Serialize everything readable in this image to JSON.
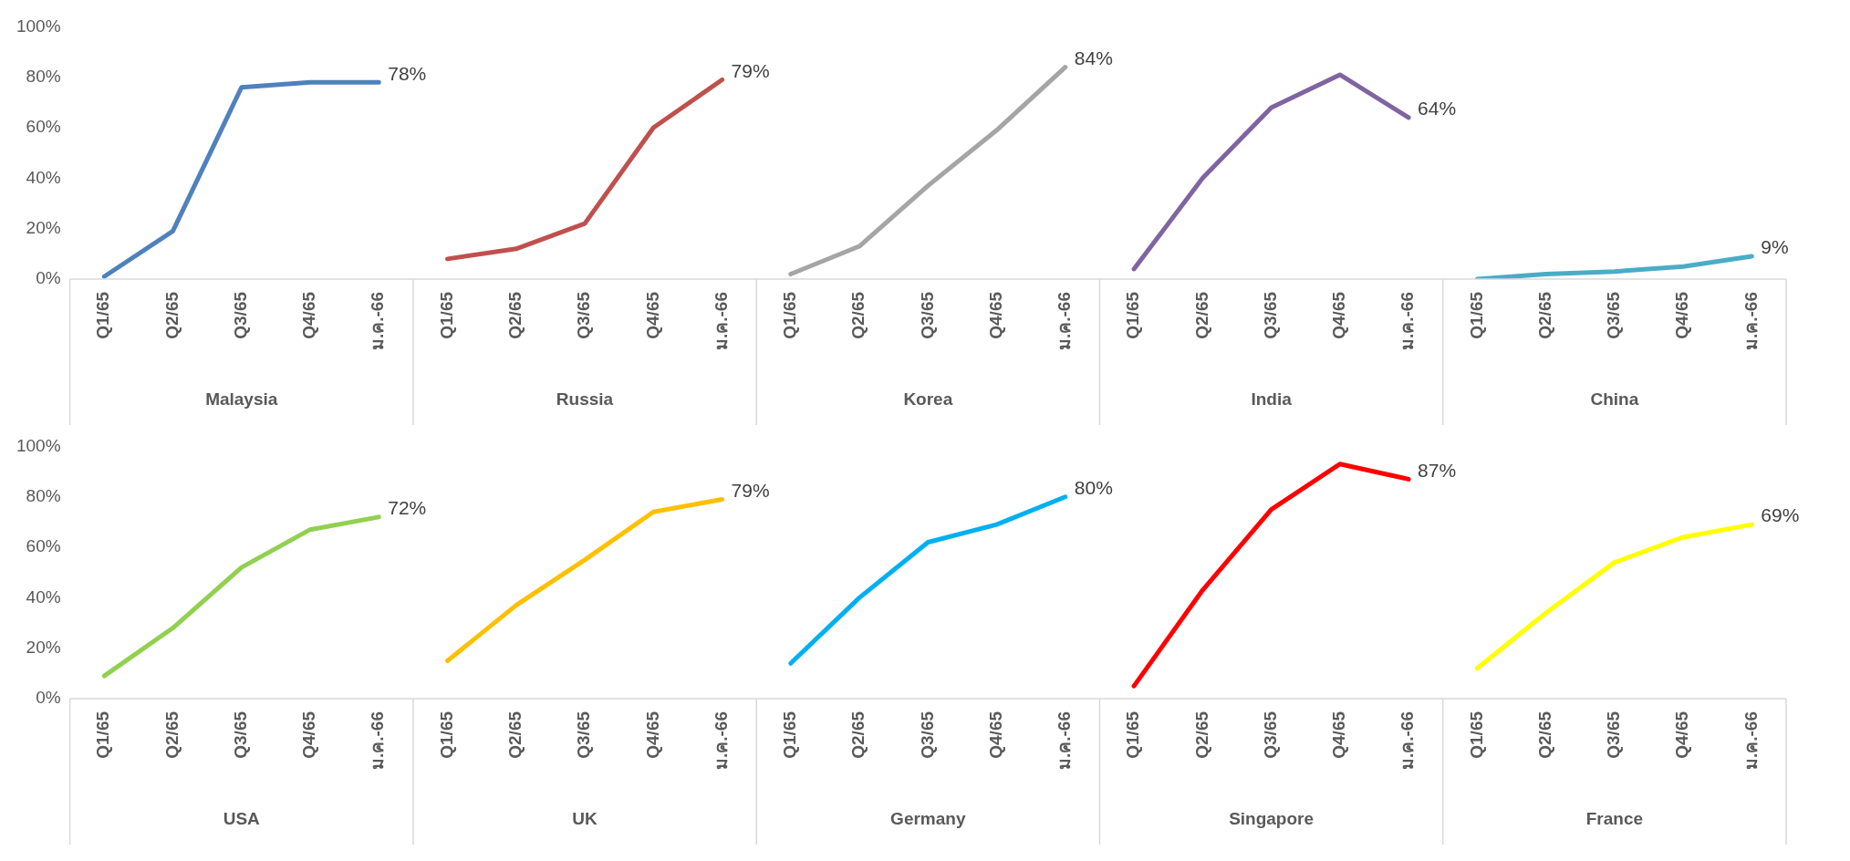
{
  "chart_data": [
    {
      "type": "line",
      "categories": [
        "Q1/65",
        "Q2/65",
        "Q3/65",
        "Q4/65",
        "ม.ค.-66",
        "Q1/65",
        "Q2/65",
        "Q3/65",
        "Q4/65",
        "ม.ค.-66",
        "Q1/65",
        "Q2/65",
        "Q3/65",
        "Q4/65",
        "ม.ค.-66",
        "Q1/65",
        "Q2/65",
        "Q3/65",
        "Q4/65",
        "ม.ค.-66",
        "Q1/65",
        "Q2/65",
        "Q3/65",
        "Q4/65",
        "ม.ค.-66"
      ],
      "ylim": [
        0,
        100
      ],
      "yticks": [
        {
          "value": 0,
          "label": "0%"
        },
        {
          "value": 20,
          "label": "20%"
        },
        {
          "value": 40,
          "label": "40%"
        },
        {
          "value": 60,
          "label": "60%"
        },
        {
          "value": 80,
          "label": "80%"
        },
        {
          "value": 100,
          "label": "100%"
        }
      ],
      "grid": false,
      "legend": false,
      "marker": "none",
      "line_style": "solid",
      "annotations": [
        "Malaysia",
        "Russia",
        "Korea",
        "India",
        "China"
      ],
      "series": [
        {
          "color": "#4f81bd",
          "values": [
            1,
            19,
            76,
            78,
            78,
            null,
            null,
            null,
            null,
            null,
            null,
            null,
            null,
            null,
            null,
            null,
            null,
            null,
            null,
            null,
            null,
            null,
            null,
            null,
            null
          ],
          "value_labels": [
            null,
            null,
            null,
            null,
            "78%",
            null,
            null,
            null,
            null,
            null,
            null,
            null,
            null,
            null,
            null,
            null,
            null,
            null,
            null,
            null,
            null,
            null,
            null,
            null,
            null
          ]
        },
        {
          "color": "#c0504d",
          "values": [
            null,
            null,
            null,
            null,
            null,
            8,
            12,
            22,
            60,
            79,
            null,
            null,
            null,
            null,
            null,
            null,
            null,
            null,
            null,
            null,
            null,
            null,
            null,
            null,
            null
          ],
          "value_labels": [
            null,
            null,
            null,
            null,
            null,
            null,
            null,
            null,
            null,
            "79%",
            null,
            null,
            null,
            null,
            null,
            null,
            null,
            null,
            null,
            null,
            null,
            null,
            null,
            null,
            null
          ]
        },
        {
          "color": "#a5a5a5",
          "values": [
            null,
            null,
            null,
            null,
            null,
            null,
            null,
            null,
            null,
            null,
            2,
            13,
            37,
            59,
            84,
            null,
            null,
            null,
            null,
            null,
            null,
            null,
            null,
            null,
            null
          ],
          "value_labels": [
            null,
            null,
            null,
            null,
            null,
            null,
            null,
            null,
            null,
            null,
            null,
            null,
            null,
            null,
            "84%",
            null,
            null,
            null,
            null,
            null,
            null,
            null,
            null,
            null,
            null
          ]
        },
        {
          "color": "#8064a2",
          "values": [
            null,
            null,
            null,
            null,
            null,
            null,
            null,
            null,
            null,
            null,
            null,
            null,
            null,
            null,
            null,
            4,
            40,
            68,
            81,
            64,
            null,
            null,
            null,
            null,
            null
          ],
          "value_labels": [
            null,
            null,
            null,
            null,
            null,
            null,
            null,
            null,
            null,
            null,
            null,
            null,
            null,
            null,
            null,
            null,
            null,
            null,
            null,
            "64%",
            null,
            null,
            null,
            null,
            null
          ]
        },
        {
          "color": "#4bacc6",
          "values": [
            null,
            null,
            null,
            null,
            null,
            null,
            null,
            null,
            null,
            null,
            null,
            null,
            null,
            null,
            null,
            null,
            null,
            null,
            null,
            null,
            0,
            2,
            3,
            5,
            9
          ],
          "value_labels": [
            null,
            null,
            null,
            null,
            null,
            null,
            null,
            null,
            null,
            null,
            null,
            null,
            null,
            null,
            null,
            null,
            null,
            null,
            null,
            null,
            null,
            null,
            null,
            null,
            "9%"
          ]
        }
      ]
    },
    {
      "type": "line",
      "categories": [
        "Q1/65",
        "Q2/65",
        "Q3/65",
        "Q4/65",
        "ม.ค.-66",
        "Q1/65",
        "Q2/65",
        "Q3/65",
        "Q4/65",
        "ม.ค.-66",
        "Q1/65",
        "Q2/65",
        "Q3/65",
        "Q4/65",
        "ม.ค.-66",
        "Q1/65",
        "Q2/65",
        "Q3/65",
        "Q4/65",
        "ม.ค.-66",
        "Q1/65",
        "Q2/65",
        "Q3/65",
        "Q4/65",
        "ม.ค.-66"
      ],
      "ylim": [
        0,
        100
      ],
      "yticks": [
        {
          "value": 0,
          "label": "0%"
        },
        {
          "value": 20,
          "label": "20%"
        },
        {
          "value": 40,
          "label": "40%"
        },
        {
          "value": 60,
          "label": "60%"
        },
        {
          "value": 80,
          "label": "80%"
        },
        {
          "value": 100,
          "label": "100%"
        }
      ],
      "grid": false,
      "legend": false,
      "marker": "none",
      "line_style": "solid",
      "annotations": [
        "USA",
        "UK",
        "Germany",
        "Singapore",
        "France"
      ],
      "series": [
        {
          "color": "#92d050",
          "values": [
            9,
            28,
            52,
            67,
            72,
            null,
            null,
            null,
            null,
            null,
            null,
            null,
            null,
            null,
            null,
            null,
            null,
            null,
            null,
            null,
            null,
            null,
            null,
            null,
            null
          ],
          "value_labels": [
            null,
            null,
            null,
            null,
            "72%",
            null,
            null,
            null,
            null,
            null,
            null,
            null,
            null,
            null,
            null,
            null,
            null,
            null,
            null,
            null,
            null,
            null,
            null,
            null,
            null
          ]
        },
        {
          "color": "#ffc000",
          "values": [
            null,
            null,
            null,
            null,
            null,
            15,
            37,
            55,
            74,
            79,
            null,
            null,
            null,
            null,
            null,
            null,
            null,
            null,
            null,
            null,
            null,
            null,
            null,
            null,
            null
          ],
          "value_labels": [
            null,
            null,
            null,
            null,
            null,
            null,
            null,
            null,
            null,
            "79%",
            null,
            null,
            null,
            null,
            null,
            null,
            null,
            null,
            null,
            null,
            null,
            null,
            null,
            null,
            null
          ]
        },
        {
          "color": "#00b0f0",
          "values": [
            null,
            null,
            null,
            null,
            null,
            null,
            null,
            null,
            null,
            null,
            14,
            40,
            62,
            69,
            80,
            null,
            null,
            null,
            null,
            null,
            null,
            null,
            null,
            null,
            null
          ],
          "value_labels": [
            null,
            null,
            null,
            null,
            null,
            null,
            null,
            null,
            null,
            null,
            null,
            null,
            null,
            null,
            "80%",
            null,
            null,
            null,
            null,
            null,
            null,
            null,
            null,
            null,
            null
          ]
        },
        {
          "color": "#ff0000",
          "values": [
            null,
            null,
            null,
            null,
            null,
            null,
            null,
            null,
            null,
            null,
            null,
            null,
            null,
            null,
            null,
            5,
            43,
            75,
            93,
            87,
            null,
            null,
            null,
            null,
            null
          ],
          "value_labels": [
            null,
            null,
            null,
            null,
            null,
            null,
            null,
            null,
            null,
            null,
            null,
            null,
            null,
            null,
            null,
            null,
            null,
            null,
            null,
            "87%",
            null,
            null,
            null,
            null,
            null
          ]
        },
        {
          "color": "#ffff00",
          "values": [
            null,
            null,
            null,
            null,
            null,
            null,
            null,
            null,
            null,
            null,
            null,
            null,
            null,
            null,
            null,
            null,
            null,
            null,
            null,
            null,
            12,
            34,
            54,
            64,
            69
          ],
          "value_labels": [
            null,
            null,
            null,
            null,
            null,
            null,
            null,
            null,
            null,
            null,
            null,
            null,
            null,
            null,
            null,
            null,
            null,
            null,
            null,
            null,
            null,
            null,
            null,
            null,
            "69%"
          ]
        }
      ]
    }
  ]
}
